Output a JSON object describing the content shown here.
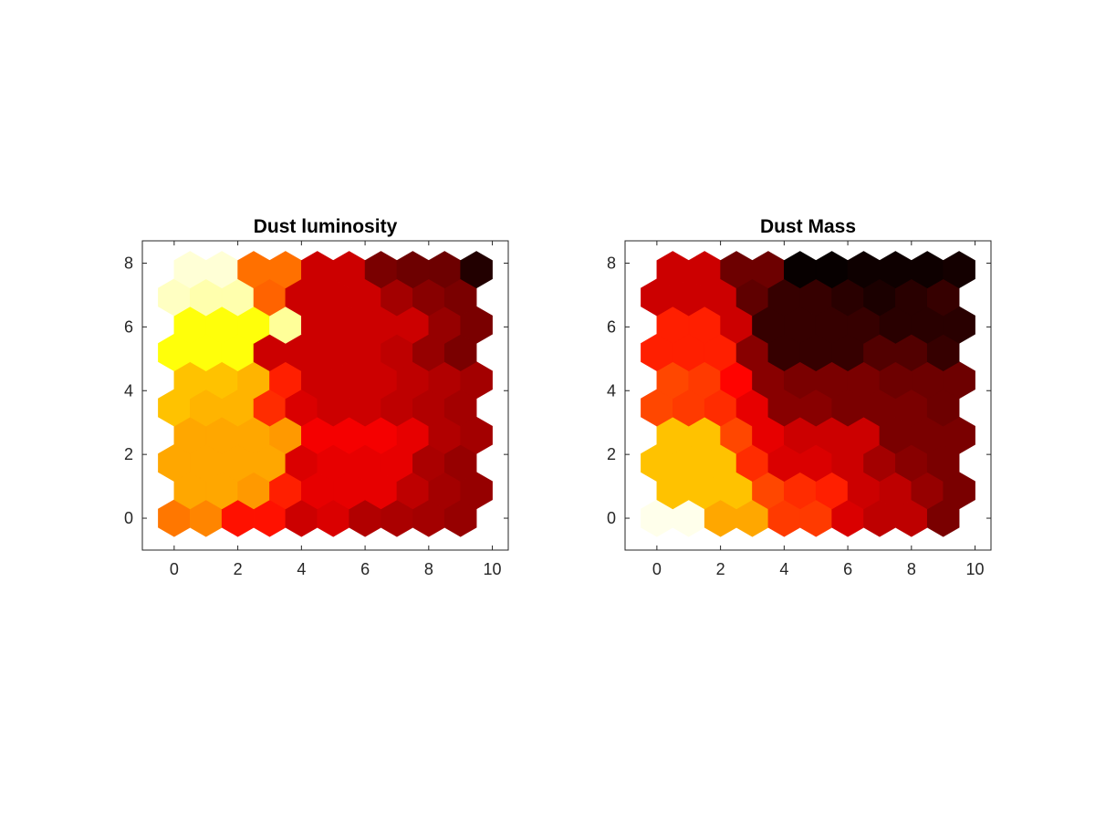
{
  "chart_data": [
    {
      "type": "heatmap",
      "grid": "hexagonal",
      "title": "Dust luminosity",
      "xlabel": "",
      "ylabel": "",
      "xlim": [
        -1,
        10.5
      ],
      "ylim": [
        -1,
        8.7
      ],
      "xticks": [
        0,
        2,
        4,
        6,
        8,
        10
      ],
      "yticks": [
        0,
        2,
        4,
        6,
        8
      ],
      "colormap": "hot",
      "rows": [
        [
          0.55,
          0.57,
          0.4,
          0.4,
          0.3,
          0.32,
          0.26,
          0.25,
          0.24,
          0.22
        ],
        [
          0.62,
          0.62,
          0.6,
          0.42,
          0.34,
          0.34,
          0.34,
          0.28,
          0.24,
          0.22
        ],
        [
          0.62,
          0.62,
          0.62,
          0.62,
          0.32,
          0.34,
          0.34,
          0.34,
          0.25,
          0.22
        ],
        [
          0.62,
          0.62,
          0.62,
          0.6,
          0.36,
          0.36,
          0.36,
          0.34,
          0.26,
          0.24
        ],
        [
          0.66,
          0.64,
          0.64,
          0.44,
          0.32,
          0.3,
          0.3,
          0.28,
          0.26,
          0.24
        ],
        [
          0.66,
          0.66,
          0.64,
          0.42,
          0.3,
          0.3,
          0.3,
          0.28,
          0.26,
          0.24
        ],
        [
          0.76,
          0.76,
          0.76,
          0.3,
          0.3,
          0.3,
          0.3,
          0.28,
          0.22,
          0.18
        ],
        [
          0.76,
          0.76,
          0.76,
          0.9,
          0.3,
          0.3,
          0.3,
          0.3,
          0.22,
          0.18
        ],
        [
          0.94,
          0.92,
          0.92,
          0.52,
          0.3,
          0.3,
          0.3,
          0.24,
          0.2,
          0.18
        ],
        [
          0.96,
          0.96,
          0.54,
          0.54,
          0.3,
          0.3,
          0.18,
          0.16,
          0.16,
          0.05
        ]
      ]
    },
    {
      "type": "heatmap",
      "grid": "hexagonal",
      "title": "Dust Mass",
      "xlabel": "",
      "ylabel": "",
      "xlim": [
        -1,
        10.5
      ],
      "ylim": [
        -1,
        8.7
      ],
      "xticks": [
        0,
        2,
        4,
        6,
        8,
        10
      ],
      "yticks": [
        0,
        2,
        4,
        6,
        8
      ],
      "colormap": "hot",
      "rows": [
        [
          0.98,
          0.98,
          0.62,
          0.62,
          0.46,
          0.46,
          0.32,
          0.28,
          0.28,
          0.18
        ],
        [
          0.66,
          0.66,
          0.66,
          0.48,
          0.44,
          0.42,
          0.3,
          0.28,
          0.22,
          0.18
        ],
        [
          0.66,
          0.66,
          0.66,
          0.44,
          0.32,
          0.32,
          0.3,
          0.24,
          0.2,
          0.18
        ],
        [
          0.66,
          0.66,
          0.48,
          0.34,
          0.3,
          0.3,
          0.3,
          0.18,
          0.18,
          0.18
        ],
        [
          0.48,
          0.46,
          0.44,
          0.34,
          0.2,
          0.2,
          0.18,
          0.18,
          0.18,
          0.16
        ],
        [
          0.48,
          0.46,
          0.38,
          0.2,
          0.18,
          0.18,
          0.18,
          0.16,
          0.16,
          0.16
        ],
        [
          0.42,
          0.42,
          0.42,
          0.2,
          0.08,
          0.08,
          0.08,
          0.12,
          0.12,
          0.08
        ],
        [
          0.42,
          0.42,
          0.3,
          0.08,
          0.08,
          0.08,
          0.08,
          0.06,
          0.06,
          0.06
        ],
        [
          0.3,
          0.3,
          0.3,
          0.14,
          0.08,
          0.08,
          0.06,
          0.04,
          0.06,
          0.08
        ],
        [
          0.3,
          0.3,
          0.16,
          0.16,
          0.01,
          0.01,
          0.02,
          0.02,
          0.02,
          0.03
        ]
      ]
    }
  ]
}
